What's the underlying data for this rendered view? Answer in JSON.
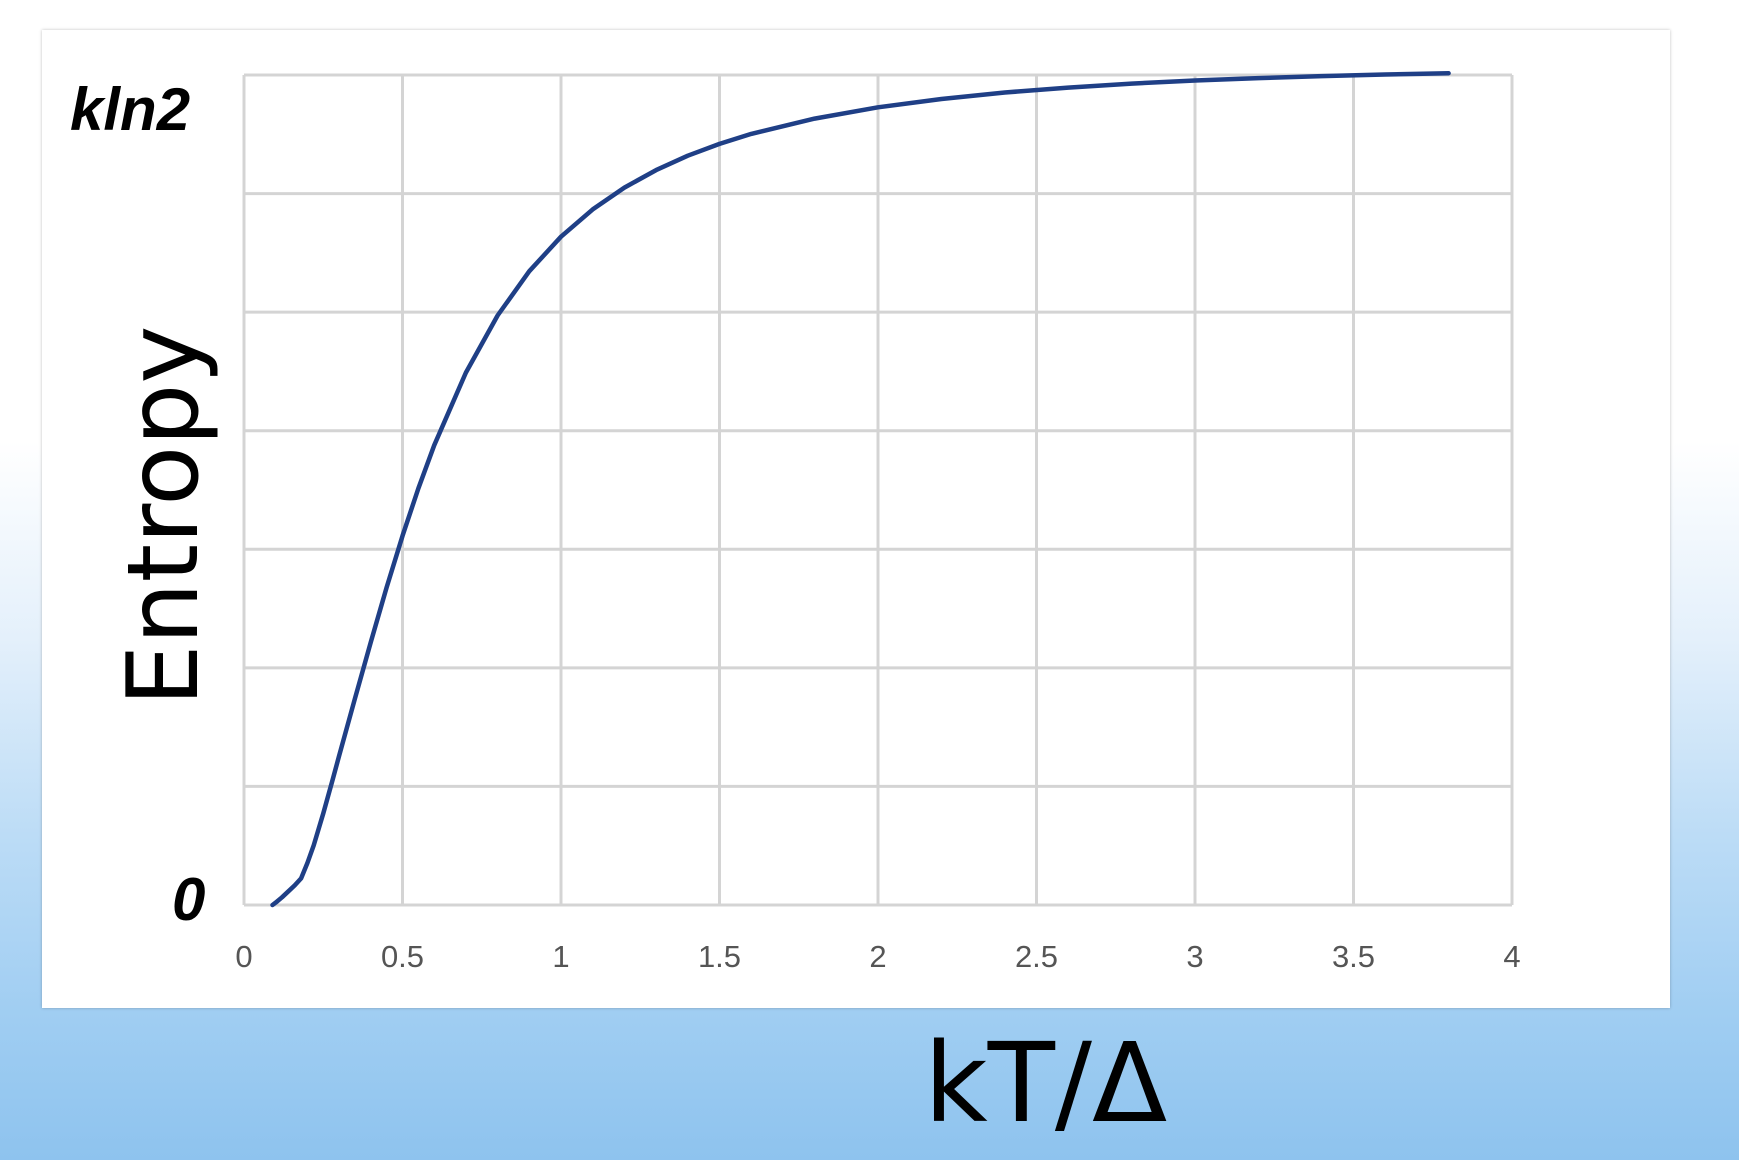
{
  "chart_data": {
    "type": "line",
    "xlabel": "kT/Δ",
    "ylabel": "Entropy",
    "y_tick_labels": {
      "top": "kln2",
      "bottom": "0"
    },
    "x_ticks": [
      "0",
      "0.5",
      "1",
      "1.5",
      "2",
      "2.5",
      "3",
      "3.5",
      "4"
    ],
    "xlim": [
      0,
      4
    ],
    "ylim": [
      0,
      0.6931
    ],
    "grid": true,
    "series": [
      {
        "color": "#1f3f86",
        "x": [
          0.09,
          0.1,
          0.12,
          0.14,
          0.16,
          0.18,
          0.2,
          0.22,
          0.25,
          0.28,
          0.3,
          0.35,
          0.4,
          0.45,
          0.5,
          0.55,
          0.6,
          0.7,
          0.8,
          0.9,
          1.0,
          1.1,
          1.2,
          1.3,
          1.4,
          1.5,
          1.6,
          1.8,
          2.0,
          2.2,
          2.4,
          2.6,
          2.8,
          3.0,
          3.2,
          3.4,
          3.6,
          3.8
        ],
        "y": [
          0.0,
          0.002,
          0.0064,
          0.0114,
          0.0164,
          0.0222,
          0.0351,
          0.0498,
          0.0766,
          0.1051,
          0.1245,
          0.1723,
          0.2195,
          0.2651,
          0.3082,
          0.348,
          0.3839,
          0.4446,
          0.4923,
          0.5293,
          0.5581,
          0.5809,
          0.5991,
          0.6137,
          0.6257,
          0.6356,
          0.6439,
          0.6567,
          0.6661,
          0.6731,
          0.6785,
          0.6826,
          0.6859,
          0.6885,
          0.6905,
          0.6922,
          0.6935,
          0.6946
        ]
      }
    ]
  }
}
